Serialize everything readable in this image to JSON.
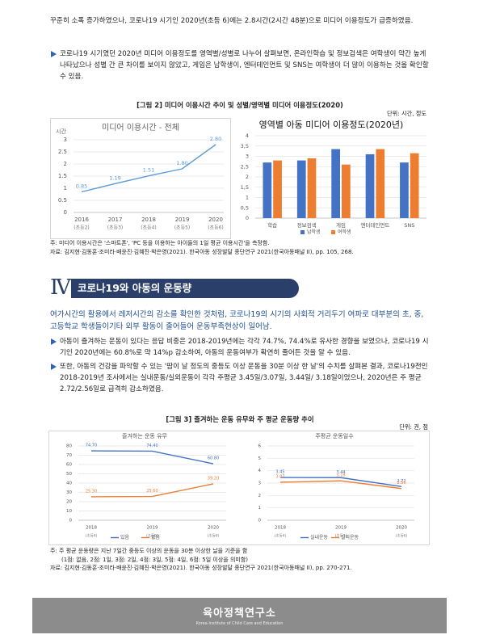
{
  "intro": {
    "paragraph": "꾸준히 소폭 증가하였으나, 코로나19 시기인 2020년(초등 6)에는 2.8시간(2시간 48분)으로 미디어 이용정도가 급증하였음.",
    "bullets": [
      "코로나19 시기였던 2020년 미디어 이용정도를 영역별/성별로 나누어 살펴보면, 온라인학습 및 정보검색은 여학생이 약간 높게 나타났으나 성별 간 큰 차이를 보이지 않았고, 게임은 남학생이, 엔터테인먼트 및 SNS는 여학생이 더 많이 이용하는 것을 확인할 수 있음."
    ]
  },
  "figure2": {
    "caption": "[그림 2] 미디어 이용시간 추이 및 성별/영역별 미디어 이용정도(2020)",
    "unit": "단위: 시간, 정도",
    "charts": [
      {
        "type": "line",
        "title": "미디어 이용시간 - 전체",
        "y_label": "시간",
        "categories": [
          "2016",
          "2017",
          "2018",
          "2019",
          "2020"
        ],
        "category_sublabels": [
          "(초등2)",
          "(초등3)",
          "(초등4)",
          "(초등5)",
          "(초등6)"
        ],
        "series": [
          {
            "name": null,
            "color": "#5b9bd5",
            "values": [
              0.85,
              1.19,
              1.51,
              1.8,
              2.8
            ],
            "value_labels": [
              "0.85",
              "1.19",
              "1.51",
              "1.80",
              "2.80"
            ]
          }
        ],
        "ylim": [
          0,
          3
        ],
        "yticks": [
          0,
          0.5,
          1,
          1.5,
          2,
          2.5,
          3
        ],
        "grid": true
      },
      {
        "type": "bar",
        "title": "영역별 아동 미디어 이용정도(2020년)",
        "categories": [
          "학습",
          "정보검색",
          "게임",
          "엔터테인먼트",
          "SNS"
        ],
        "series": [
          {
            "name": "남학생",
            "color": "#4472c4",
            "values": [
              2.7,
              2.8,
              3.35,
              3.1,
              2.7
            ]
          },
          {
            "name": "여학생",
            "color": "#ed7d31",
            "values": [
              2.8,
              2.9,
              2.6,
              3.35,
              3.15
            ]
          }
        ],
        "ylim": [
          0,
          4
        ],
        "yticks": [
          0,
          {
            "value": 0.5,
            "label": "0,5"
          },
          1,
          {
            "value": 1.5,
            "label": "1,5"
          },
          2,
          {
            "value": 2.5,
            "label": "2,5"
          },
          3,
          {
            "value": 3.5,
            "label": "3,5"
          },
          4
        ],
        "grid": true,
        "legend": "bottom"
      }
    ],
    "notes": [
      "주: 미디어 이용시간은 '스마트폰', 'PC 등을 이용하는 아이들의 1일 평균 이용시간'을 측정함.",
      "자료: 김지현·김동훈·조미라·배윤진·김혜진·박은영(2021). 한국아동 성장발달 종단연구 2021(한국아동패널 II), pp. 105, 268."
    ]
  },
  "section": {
    "number": "Ⅳ",
    "title": "코로나19와 아동의 운동량",
    "lead": "여가시간의 활용에서 레저시간의 감소를 확인한 것처럼, 코로나19의 시기의 사회적 거리두기 여파로 대부분의 초, 중, 고등학교 학생들이기타 외부 활동이 줄어들어 운동부족현상이 일어남.",
    "bullets": [
      "아동이 즐겨하는 운동이 있다는 응답 비중은 2018-2019년에는 각각 74.7%, 74.4%로 유사한 경향을 보였으나, 코로나19 시기인 2020년에는 60.8%로 약 14%p 감소하여, 아동의 운동여부가 확연히 줄어든 것을 알 수 있음.",
      "또한, 아동의 건강을 파악할 수 있는 '땀이 날 정도의 중등도 이상 운동을 30분 이상 한 날'의 수치를 살펴본 결과, 코로나19전인 2018-2019년 조사에서는 실내운동/실외운동이 각각 주평균 3.45일/3.07일, 3.44일/ 3.18일이었으나, 2020년은 주 평균 2.72/2.56일로 급격히 감소하였음."
    ]
  },
  "figure3": {
    "caption": "[그림 3] 즐겨하는 운동 유무와 주 평균 운동량 추이",
    "unit": "단위: 권, 점",
    "charts": [
      {
        "type": "line",
        "title": "즐겨하는 운동 유무",
        "categories": [
          "2018",
          "2019",
          "2020"
        ],
        "category_sublabels": [
          "(초등4)",
          "(초등5)",
          "(초등6)"
        ],
        "series": [
          {
            "name": "있음",
            "color": "#4472c4",
            "values": [
              74.7,
              74.4,
              60.8
            ],
            "value_labels": [
              "74.70",
              "74.40",
              "60.80"
            ]
          },
          {
            "name": "없음",
            "color": "#ed7d31",
            "values": [
              25.3,
              25.6,
              39.2
            ],
            "value_labels": [
              "25.30",
              "25.60",
              "39.20"
            ]
          }
        ],
        "ylim": [
          0,
          80
        ],
        "yticks": [
          0,
          10,
          20,
          30,
          40,
          50,
          60,
          70,
          80
        ],
        "grid": true,
        "legend": "bottom"
      },
      {
        "type": "line",
        "title": "주평균 운동일수",
        "categories": [
          "2018",
          "2019",
          "2020"
        ],
        "category_sublabels": [
          "(초등4)",
          "(초등5)",
          "(초등6)"
        ],
        "series": [
          {
            "name": "실내운동",
            "color": "#4472c4",
            "values": [
              3.45,
              3.44,
              2.72
            ]
          },
          {
            "name": "실외운동",
            "color": "#ed7d31",
            "values": [
              3.07,
              3.18,
              2.56
            ]
          }
        ],
        "ylim": [
          0,
          6
        ],
        "yticks": [
          0,
          1,
          2,
          3,
          4,
          5,
          6
        ],
        "grid": true,
        "legend": "bottom"
      }
    ],
    "notes": [
      "주: 주 평균 운동량은 지난 7일간 중등도 이상의 운동을 30분 이상한 날을 기준을 함",
      "(1점: 없음, 2점: 1일, 3점: 2일, 4점: 3일, 5점: 4일, 6점: 5일 이상을 의미함)",
      "자료: 김지현·김동훈·조미라·배윤진·김혜진·박은영(2021). 한국아동 성장발달 종단연구 2021(한국아동패널 II), pp. 270-271."
    ]
  },
  "footer": {
    "logo": "육아정책연구소",
    "logo_en": "Korea Institute of Child Care and Education"
  }
}
